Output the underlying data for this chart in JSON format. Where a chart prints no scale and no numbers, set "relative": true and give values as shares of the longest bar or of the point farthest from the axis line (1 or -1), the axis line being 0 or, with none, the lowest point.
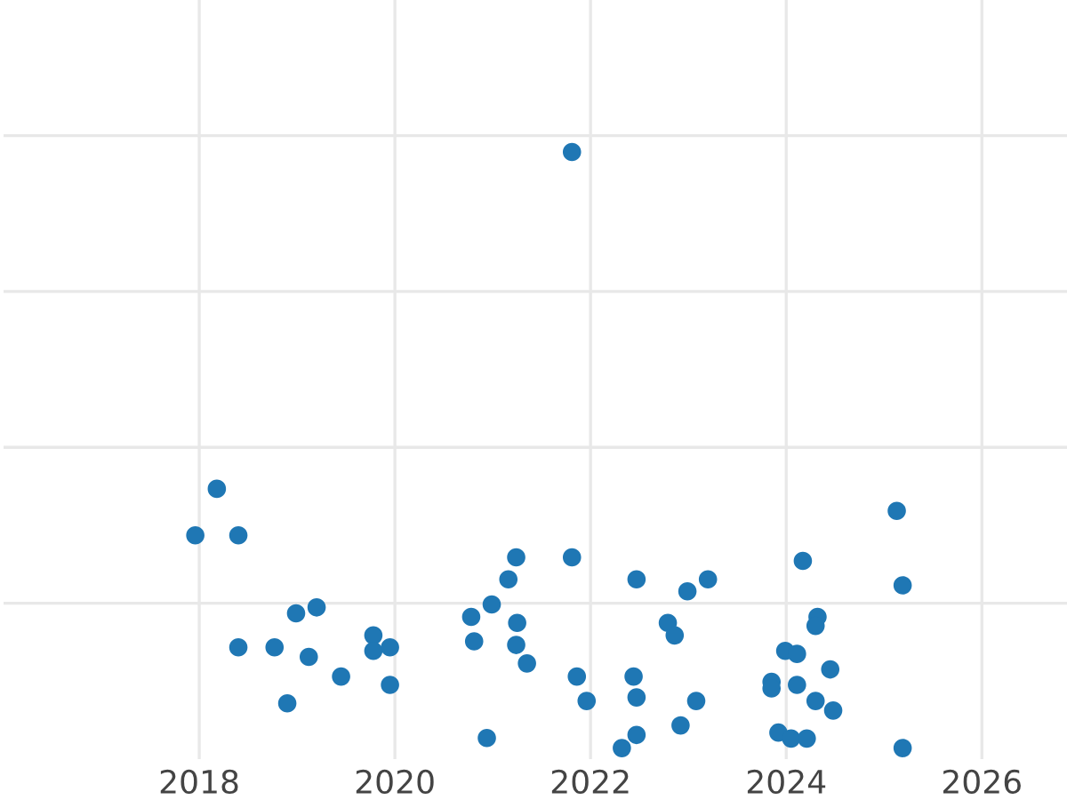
{
  "chart_data": {
    "type": "scatter",
    "relative": true,
    "color": "#1f77b4",
    "grid": true,
    "tick_labels": "x",
    "marker": "circle",
    "x": [
      2017.96,
      2018.18,
      2018.4,
      2018.4,
      2018.77,
      2018.9,
      2018.99,
      2019.12,
      2019.2,
      2019.45,
      2019.78,
      2019.78,
      2019.95,
      2019.95,
      2020.78,
      2020.81,
      2020.94,
      2020.99,
      2021.16,
      2021.24,
      2021.25,
      2021.24,
      2021.35,
      2021.81,
      2021.81,
      2021.86,
      2021.96,
      2022.32,
      2022.44,
      2022.47,
      2022.47,
      2022.47,
      2022.79,
      2022.86,
      2022.92,
      2022.99,
      2023.08,
      2023.2,
      2023.85,
      2023.85,
      2023.92,
      2023.99,
      2024.05,
      2024.11,
      2024.11,
      2024.17,
      2024.21,
      2024.3,
      2024.32,
      2024.3,
      2024.45,
      2024.48,
      2025.13,
      2025.19,
      2025.19
    ],
    "values": [
      0.357,
      0.435,
      0.357,
      0.169,
      0.169,
      0.075,
      0.226,
      0.153,
      0.236,
      0.12,
      0.189,
      0.163,
      0.169,
      0.106,
      0.22,
      0.179,
      0.017,
      0.241,
      0.283,
      0.32,
      0.21,
      0.173,
      0.142,
      1.0,
      0.32,
      0.12,
      0.079,
      0,
      0.12,
      0.283,
      0.085,
      0.022,
      0.21,
      0.189,
      0.038,
      0.263,
      0.079,
      0.283,
      0.111,
      0.1,
      0.026,
      0.163,
      0.016,
      0.158,
      0.106,
      0.314,
      0.016,
      0.079,
      0.22,
      0.205,
      0.132,
      0.063,
      0.398,
      0.273,
      0
    ],
    "xlim": [
      2016,
      2026.87
    ],
    "xticks": [
      2018,
      2020,
      2022,
      2024,
      2026
    ]
  }
}
